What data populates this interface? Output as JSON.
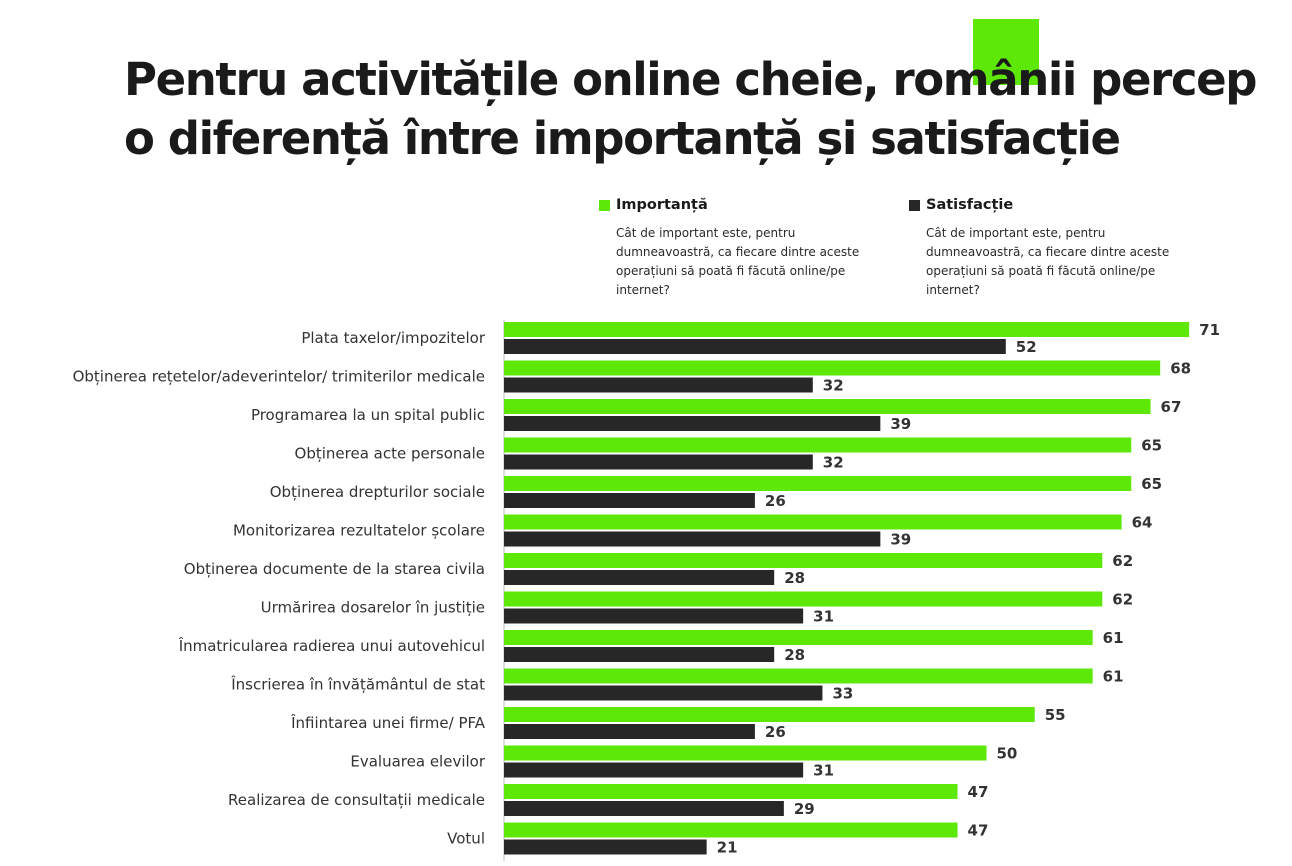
{
  "title": {
    "line1": "Pentru activitățile online cheie, românii percep",
    "line2": "o diferență între importanță și satisfacție"
  },
  "legend": [
    {
      "name": "Importanță",
      "color": "#5EE808",
      "description": "Cât de important este, pentru dumneavoastră, ca fiecare dintre aceste operațiuni să poată fi făcută online/pe internet?"
    },
    {
      "name": "Satisfacție",
      "color": "#272727",
      "description": "Cât de important este, pentru dumneavoastră, ca fiecare dintre aceste operațiuni să poată fi făcută online/pe internet?"
    }
  ],
  "chart_data": {
    "type": "bar",
    "orientation": "horizontal",
    "title": "Pentru activitățile online cheie, românii percep o diferență între importanță și satisfacție",
    "categories": [
      "Plata taxelor/impozitelor",
      "Obținerea rețetelor/adeverintelor/ trimiterilor medicale",
      "Programarea la un spital public",
      "Obținerea acte personale",
      "Obținerea drepturilor sociale",
      "Monitorizarea rezultatelor școlare",
      "Obținerea documente de la starea civila",
      "Urmărirea dosarelor în justiție",
      "Înmatricularea radierea unui autovehicul",
      "Înscrierea în învățământul de stat",
      "Înfiintarea unei firme/ PFA",
      "Evaluarea elevilor",
      "Realizarea de consultații medicale",
      "Votul"
    ],
    "series": [
      {
        "name": "Importanță",
        "color": "#5EE808",
        "values": [
          71,
          68,
          67,
          65,
          65,
          64,
          62,
          62,
          61,
          61,
          55,
          50,
          47,
          47
        ]
      },
      {
        "name": "Satisfacție",
        "color": "#272727",
        "values": [
          52,
          32,
          39,
          32,
          26,
          39,
          28,
          31,
          28,
          33,
          26,
          31,
          29,
          21
        ]
      }
    ],
    "data_labels": true,
    "legend_position": "top",
    "grid": false,
    "xlim": [
      0,
      71
    ]
  }
}
